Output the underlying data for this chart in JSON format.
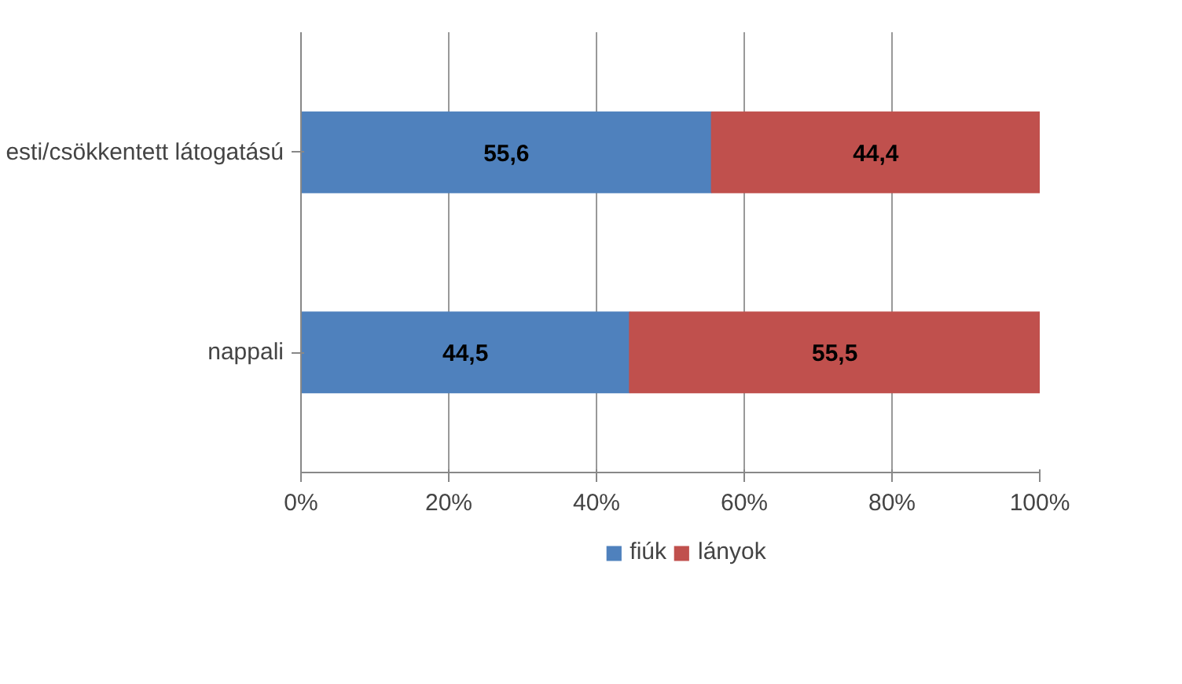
{
  "chart_data": {
    "type": "bar",
    "orientation": "horizontal",
    "stacked": true,
    "categories": [
      "esti/csökkentett látogatású",
      "nappali"
    ],
    "series": [
      {
        "name": "fiúk",
        "color": "#4f81bd",
        "values": [
          55.6,
          44.5
        ],
        "value_labels": [
          "55,6",
          "44,5"
        ]
      },
      {
        "name": "lányok",
        "color": "#c0504d",
        "values": [
          44.4,
          55.5
        ],
        "value_labels": [
          "44,4",
          "55,5"
        ]
      }
    ],
    "xlim": [
      0,
      100
    ],
    "xticks": [
      {
        "value": 0,
        "label": "0%"
      },
      {
        "value": 20,
        "label": "20%"
      },
      {
        "value": 40,
        "label": "40%"
      },
      {
        "value": 60,
        "label": "60%"
      },
      {
        "value": 80,
        "label": "80%"
      },
      {
        "value": 100,
        "label": "100%"
      }
    ],
    "grid": "x",
    "legend": "bottom"
  }
}
